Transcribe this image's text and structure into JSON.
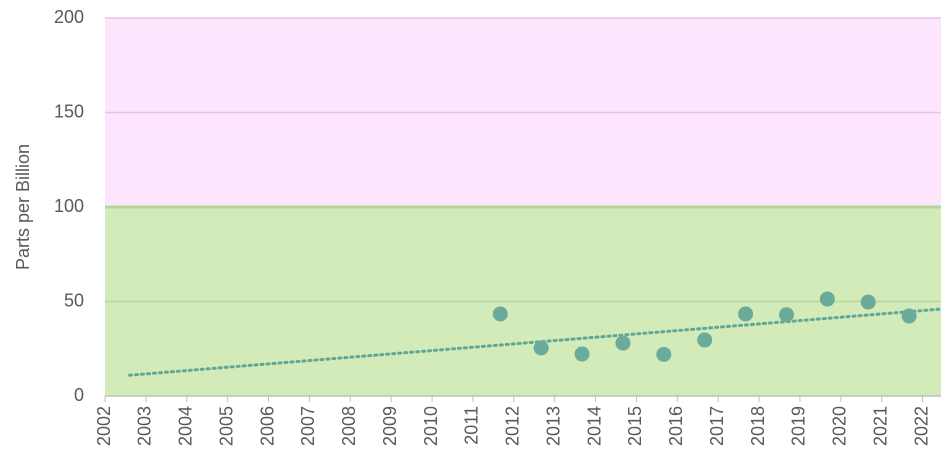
{
  "chart_data": {
    "type": "scatter",
    "y_label": "Parts per Billion",
    "x": [
      2011.67,
      2012.67,
      2013.67,
      2014.67,
      2015.67,
      2016.67,
      2017.67,
      2018.67,
      2019.67,
      2020.67,
      2021.67
    ],
    "values": [
      43.4,
      25.4,
      22.2,
      28,
      22,
      29.6,
      43.4,
      43,
      51.3,
      49.7,
      42.3
    ],
    "color": "#6aab9c",
    "trendline": {
      "x": [
        2002.6,
        2022.45
      ],
      "values": [
        11,
        46
      ],
      "color": "#5fa898"
    },
    "bands": [
      {
        "from": 0,
        "to": 100,
        "color": "#d3eab9"
      },
      {
        "from": 100,
        "to": 200,
        "color": "#fde6fd"
      }
    ],
    "xlim": [
      2002,
      2022.45
    ],
    "xticks": [
      2002,
      2003,
      2004,
      2005,
      2006,
      2007,
      2008,
      2009,
      2010,
      2011,
      2012,
      2013,
      2014,
      2015,
      2016,
      2017,
      2018,
      2019,
      2020,
      2021,
      2022
    ],
    "ylim": [
      0,
      200
    ],
    "yticks": [
      0,
      50,
      100,
      150,
      200
    ],
    "grid": true
  }
}
